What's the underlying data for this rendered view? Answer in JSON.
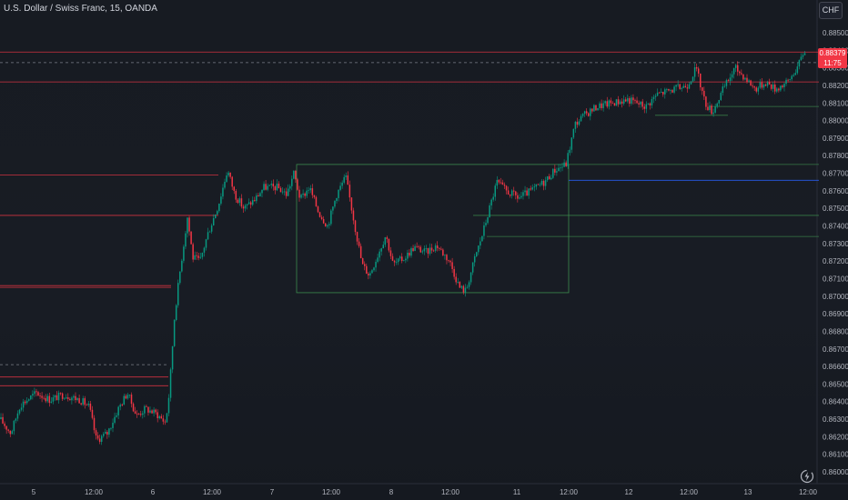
{
  "header": {
    "title": "U.S. Dollar / Swiss Franc, 15, OANDA"
  },
  "currency_badge": "CHF",
  "last_price": {
    "price": "0.88379",
    "countdown": "11:75"
  },
  "icons": {
    "reset": "lightning-reset-icon"
  },
  "colors": {
    "background": "#171b22",
    "up": "#089981",
    "down": "#f23645",
    "resistance": "#f23645",
    "support_box": "#3d8b4d",
    "blue_level": "#2962ff",
    "text": "#d1d4dc"
  },
  "chart_data": {
    "type": "candlestick",
    "title": "U.S. Dollar / Swiss Franc, 15, OANDA",
    "ylim": [
      0.8595,
      0.8856
    ],
    "y_ticks": [
      "0.88500",
      "0.88400",
      "0.88300",
      "0.88200",
      "0.88100",
      "0.88000",
      "0.87900",
      "0.87800",
      "0.87700",
      "0.87600",
      "0.87500",
      "0.87400",
      "0.87300",
      "0.87200",
      "0.87100",
      "0.87000",
      "0.86900",
      "0.86800",
      "0.86700",
      "0.86600",
      "0.86500",
      "0.86400",
      "0.86300",
      "0.86200",
      "0.86100",
      "0.86000"
    ],
    "x_ticks": [
      "5",
      "12:00",
      "6",
      "12:00",
      "7",
      "12:00",
      "8",
      "12:00",
      "11",
      "12:00",
      "12",
      "12:00",
      "13",
      "12:00"
    ],
    "price_path": [
      [
        0,
        0.863
      ],
      [
        12,
        0.8622
      ],
      [
        22,
        0.8638
      ],
      [
        40,
        0.8645
      ],
      [
        55,
        0.8641
      ],
      [
        70,
        0.8644
      ],
      [
        88,
        0.8641
      ],
      [
        98,
        0.8637
      ],
      [
        106,
        0.8618
      ],
      [
        118,
        0.8622
      ],
      [
        130,
        0.8636
      ],
      [
        140,
        0.8645
      ],
      [
        150,
        0.8632
      ],
      [
        160,
        0.8636
      ],
      [
        172,
        0.8633
      ],
      [
        182,
        0.8628
      ],
      [
        186,
        0.8645
      ],
      [
        192,
        0.869
      ],
      [
        198,
        0.8715
      ],
      [
        206,
        0.8745
      ],
      [
        212,
        0.8722
      ],
      [
        220,
        0.872
      ],
      [
        228,
        0.8735
      ],
      [
        240,
        0.8752
      ],
      [
        250,
        0.8772
      ],
      [
        258,
        0.8758
      ],
      [
        268,
        0.875
      ],
      [
        280,
        0.8755
      ],
      [
        290,
        0.8762
      ],
      [
        305,
        0.8762
      ],
      [
        315,
        0.8758
      ],
      [
        323,
        0.877
      ],
      [
        330,
        0.8755
      ],
      [
        340,
        0.8762
      ],
      [
        350,
        0.8748
      ],
      [
        360,
        0.874
      ],
      [
        370,
        0.8758
      ],
      [
        380,
        0.8768
      ],
      [
        390,
        0.874
      ],
      [
        398,
        0.8718
      ],
      [
        406,
        0.8712
      ],
      [
        414,
        0.8722
      ],
      [
        424,
        0.8735
      ],
      [
        432,
        0.8718
      ],
      [
        445,
        0.8722
      ],
      [
        455,
        0.8728
      ],
      [
        468,
        0.8725
      ],
      [
        480,
        0.8729
      ],
      [
        494,
        0.872
      ],
      [
        505,
        0.8705
      ],
      [
        512,
        0.8703
      ],
      [
        522,
        0.8722
      ],
      [
        530,
        0.8735
      ],
      [
        538,
        0.875
      ],
      [
        546,
        0.8765
      ],
      [
        556,
        0.876
      ],
      [
        570,
        0.8756
      ],
      [
        584,
        0.876
      ],
      [
        598,
        0.8765
      ],
      [
        610,
        0.8772
      ],
      [
        622,
        0.8775
      ],
      [
        632,
        0.8798
      ],
      [
        642,
        0.8803
      ],
      [
        656,
        0.8808
      ],
      [
        672,
        0.881
      ],
      [
        690,
        0.8812
      ],
      [
        710,
        0.8808
      ],
      [
        722,
        0.8815
      ],
      [
        742,
        0.8818
      ],
      [
        755,
        0.882
      ],
      [
        765,
        0.883
      ],
      [
        775,
        0.881
      ],
      [
        783,
        0.8805
      ],
      [
        795,
        0.8818
      ],
      [
        808,
        0.883
      ],
      [
        818,
        0.8825
      ],
      [
        830,
        0.8818
      ],
      [
        842,
        0.8822
      ],
      [
        852,
        0.8818
      ],
      [
        866,
        0.8822
      ],
      [
        878,
        0.8832
      ],
      [
        884,
        0.884
      ]
    ],
    "levels": [
      {
        "kind": "resistance",
        "y": 0.8839,
        "x0": 0,
        "x1": 900
      },
      {
        "kind": "resistance",
        "y": 0.8822,
        "x0": 0,
        "x1": 900
      },
      {
        "kind": "dashed",
        "y": 0.8833,
        "x0": 0,
        "x1": 900
      },
      {
        "kind": "resistance",
        "y": 0.8769,
        "x0": 0,
        "x1": 240
      },
      {
        "kind": "resistance",
        "y": 0.8746,
        "x0": 0,
        "x1": 240
      },
      {
        "kind": "resistance",
        "y": 0.8706,
        "x0": 0,
        "x1": 188
      },
      {
        "kind": "resistance",
        "y": 0.8705,
        "x0": 0,
        "x1": 188
      },
      {
        "kind": "dashed",
        "y": 0.8661,
        "x0": 0,
        "x1": 185
      },
      {
        "kind": "resistance",
        "y": 0.8654,
        "x0": 0,
        "x1": 185
      },
      {
        "kind": "resistance",
        "y": 0.8649,
        "x0": 0,
        "x1": 185
      },
      {
        "kind": "blue",
        "y": 0.8766,
        "x0": 625,
        "x1": 900
      },
      {
        "kind": "support",
        "y": 0.8775,
        "x0": 625,
        "x1": 900
      },
      {
        "kind": "support",
        "y": 0.8746,
        "x0": 520,
        "x1": 900
      },
      {
        "kind": "support",
        "y": 0.8734,
        "x0": 535,
        "x1": 900
      },
      {
        "kind": "support",
        "y": 0.8808,
        "x0": 780,
        "x1": 900
      },
      {
        "kind": "support",
        "y": 0.8803,
        "x0": 720,
        "x1": 800
      }
    ],
    "boxes": [
      {
        "kind": "support",
        "y0": 0.8702,
        "y1": 0.8775,
        "x0": 326,
        "x1": 625
      }
    ]
  }
}
